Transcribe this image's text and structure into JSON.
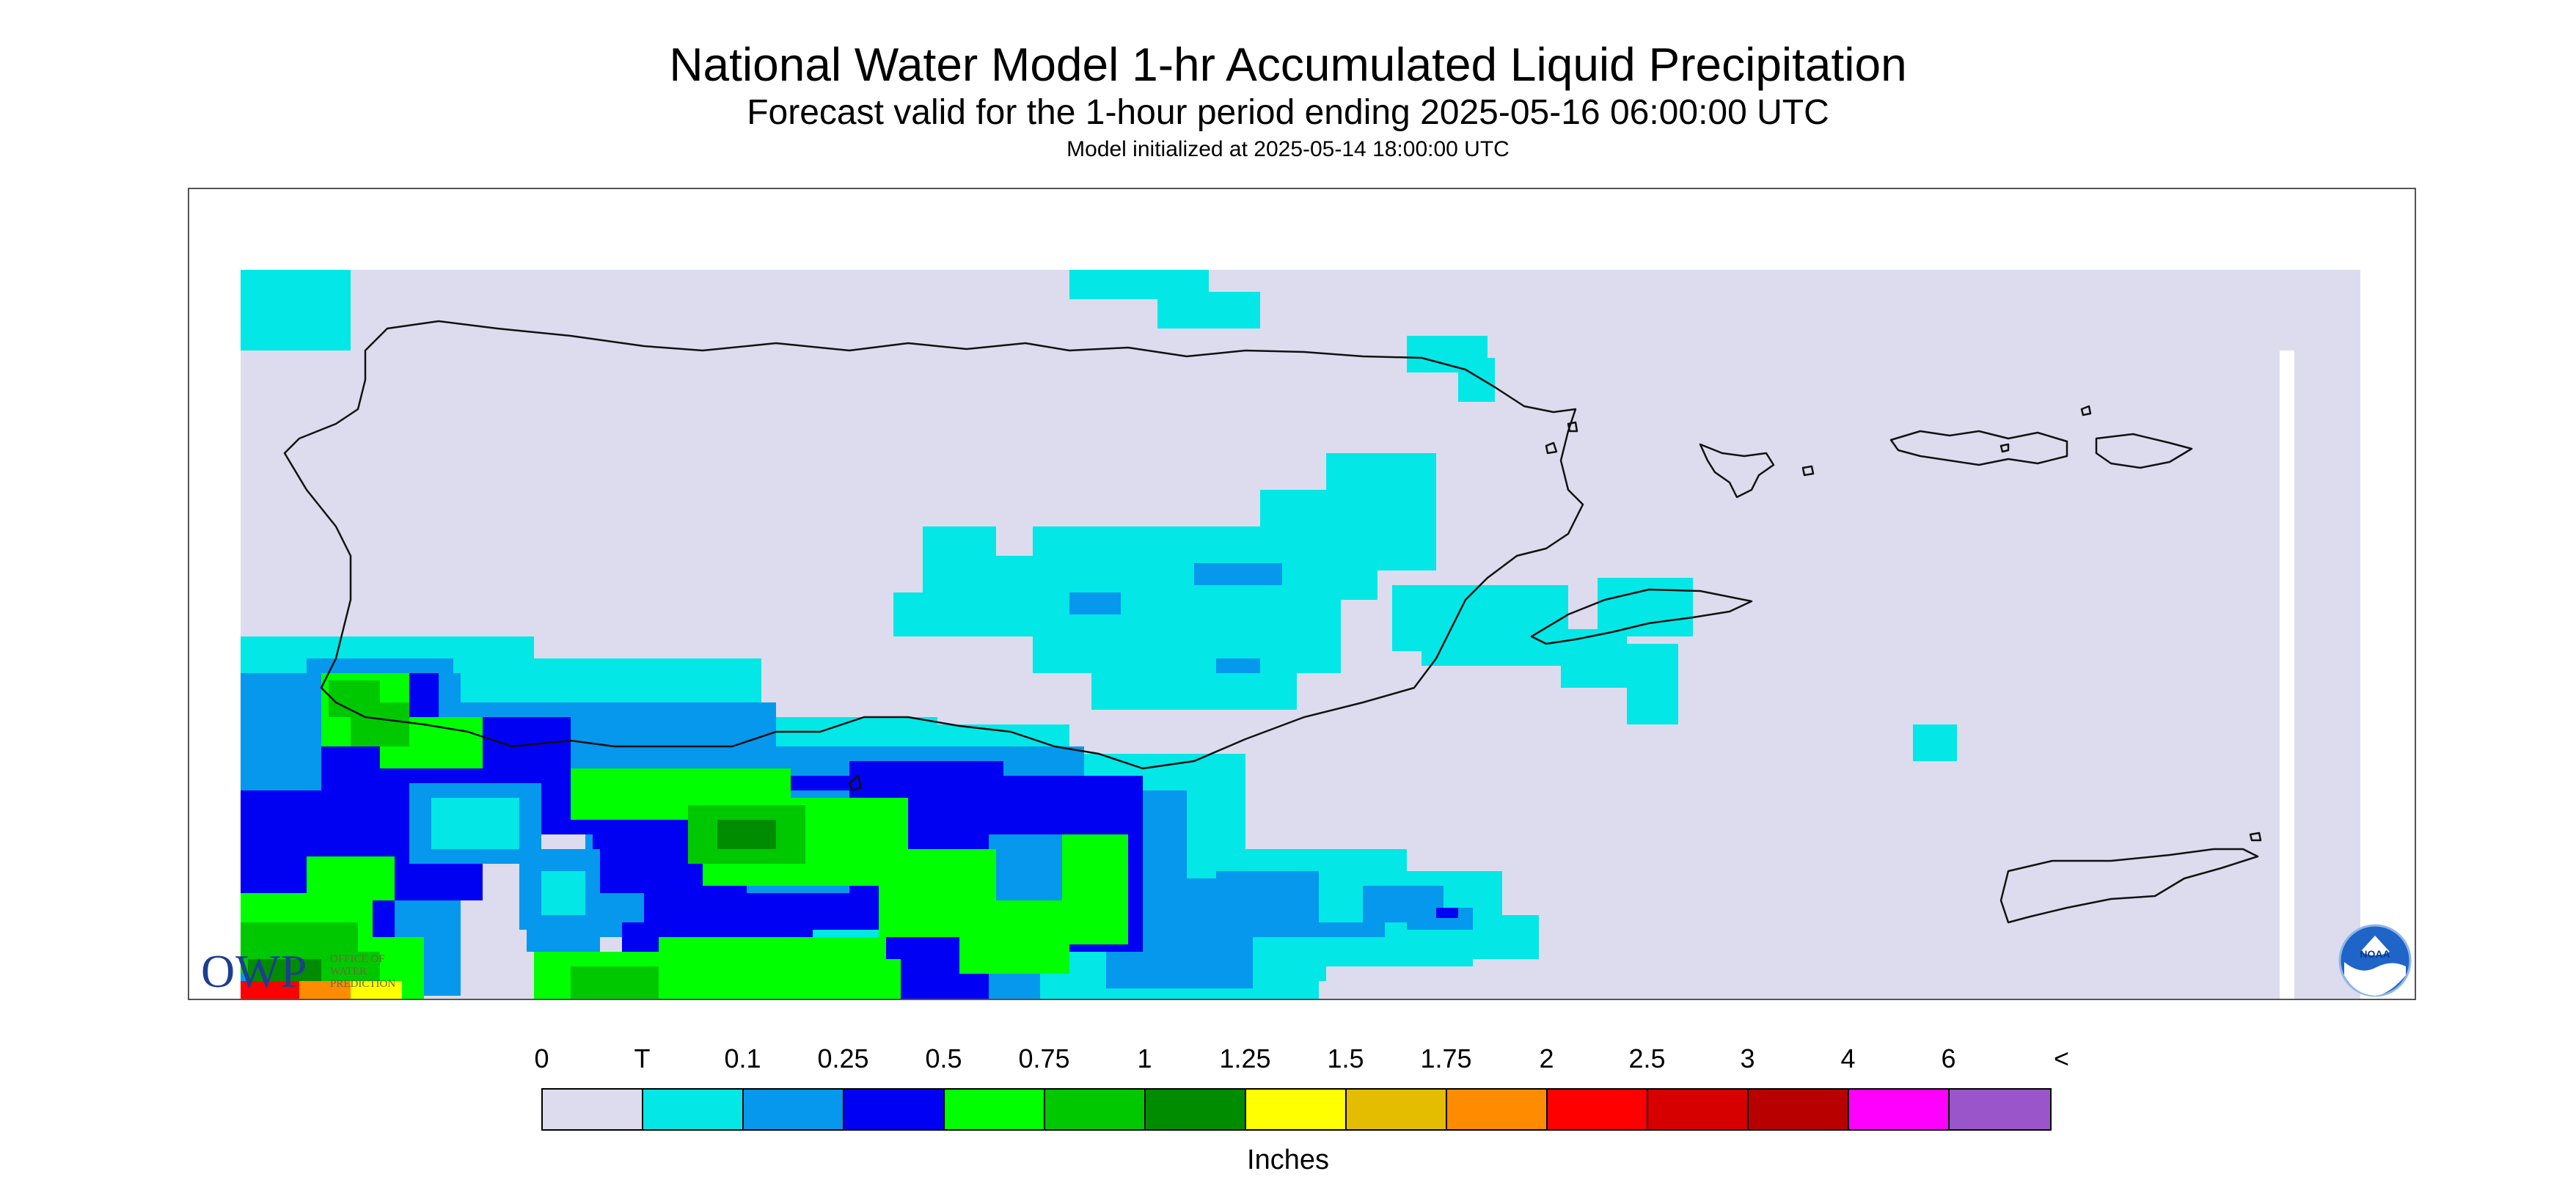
{
  "header": {
    "title": "National Water Model 1-hr Accumulated Liquid Precipitation",
    "subtitle": "Forecast valid for the 1-hour period ending 2025-05-16 06:00:00 UTC",
    "init": "Model initialized at 2025-05-14 18:00:00 UTC"
  },
  "legend": {
    "labels": [
      "0",
      "T",
      "0.1",
      "0.25",
      "0.5",
      "0.75",
      "1",
      "1.25",
      "1.5",
      "1.75",
      "2",
      "2.5",
      "3",
      "4",
      "6",
      "<"
    ],
    "colors": [
      "#dcdcee",
      "#03e7e6",
      "#0598ec",
      "#0000f2",
      "#00ff00",
      "#00c800",
      "#008c00",
      "#ffff00",
      "#e5bd00",
      "#ff8c00",
      "#ff0000",
      "#d60000",
      "#b80000",
      "#ff00ff",
      "#9955c9"
    ],
    "units": "Inches"
  },
  "map": {
    "background_color": "#dcdcee",
    "region": "Puerto Rico and U.S. Virgin Islands"
  },
  "logos": {
    "owp": {
      "letters": "OWP",
      "small_text": [
        "OFFICE OF",
        "WATER",
        "PREDICTION"
      ]
    },
    "noaa": {
      "text": "NOAA"
    }
  }
}
